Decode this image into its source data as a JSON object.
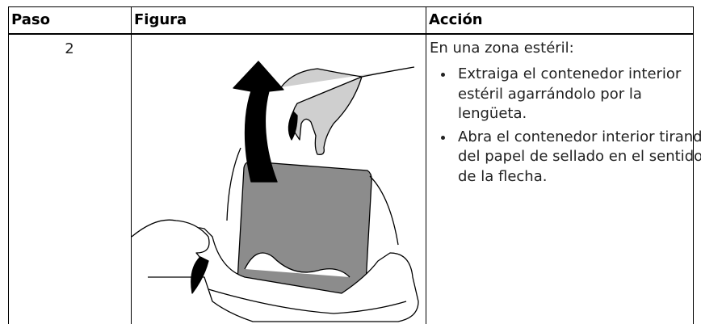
{
  "table": {
    "headers": [
      "Paso",
      "Figura",
      "Acción"
    ],
    "rows": [
      {
        "step": "2",
        "action": {
          "intro": "En una zona estéril:",
          "bullets": [
            "Extraiga el contenedor interior estéril agarrándolo por la lengüeta.",
            "Abra el contenedor interior tirando del papel de sellado en el sentido de la flecha."
          ]
        }
      }
    ]
  }
}
